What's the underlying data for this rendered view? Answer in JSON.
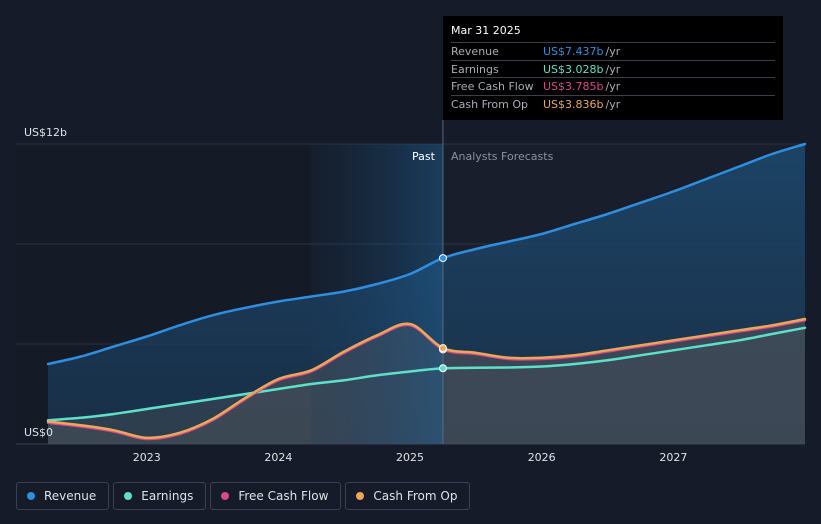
{
  "chart_data": {
    "type": "area",
    "y_top_label": "US$12b",
    "y_bottom_label": "US$0",
    "ylim": [
      0,
      12
    ],
    "x_ticks": [
      "2023",
      "2024",
      "2025",
      "2026",
      "2027"
    ],
    "past_label": "Past",
    "forecast_label": "Analysts Forecasts",
    "series": [
      {
        "name": "Revenue",
        "color": "#2e8fe0",
        "x": [
          2022.25,
          2022.5,
          2022.75,
          2023.0,
          2023.25,
          2023.5,
          2023.75,
          2024.0,
          2024.25,
          2024.5,
          2024.75,
          2025.0,
          2025.25,
          2025.5,
          2025.75,
          2026.0,
          2026.25,
          2026.5,
          2026.75,
          2027.0,
          2027.25,
          2027.5,
          2027.75,
          2028.0
        ],
        "values": [
          3.2,
          3.5,
          3.9,
          4.3,
          4.75,
          5.15,
          5.45,
          5.7,
          5.9,
          6.1,
          6.4,
          6.8,
          7.437,
          7.8,
          8.1,
          8.4,
          8.8,
          9.2,
          9.65,
          10.1,
          10.6,
          11.1,
          11.6,
          12.0
        ]
      },
      {
        "name": "Earnings",
        "color": "#5ee0c8",
        "x": [
          2022.25,
          2022.5,
          2022.75,
          2023.0,
          2023.25,
          2023.5,
          2023.75,
          2024.0,
          2024.25,
          2024.5,
          2024.75,
          2025.0,
          2025.25,
          2025.5,
          2025.75,
          2026.0,
          2026.25,
          2026.5,
          2026.75,
          2027.0,
          2027.25,
          2027.5,
          2027.75,
          2028.0
        ],
        "values": [
          0.95,
          1.05,
          1.2,
          1.4,
          1.6,
          1.8,
          2.0,
          2.2,
          2.4,
          2.55,
          2.75,
          2.9,
          3.028,
          3.05,
          3.06,
          3.1,
          3.2,
          3.35,
          3.55,
          3.75,
          3.95,
          4.15,
          4.4,
          4.65
        ]
      },
      {
        "name": "Free Cash Flow",
        "color": "#d6498c",
        "x": [
          2022.25,
          2022.5,
          2022.75,
          2023.0,
          2023.25,
          2023.5,
          2023.75,
          2024.0,
          2024.25,
          2024.5,
          2024.75,
          2025.0,
          2025.25,
          2025.5,
          2025.75,
          2026.0,
          2026.25,
          2026.5,
          2026.75,
          2027.0,
          2027.25,
          2027.5,
          2027.75,
          2028.0
        ],
        "values": [
          0.85,
          0.7,
          0.5,
          0.2,
          0.4,
          0.95,
          1.8,
          2.55,
          2.9,
          3.65,
          4.3,
          4.75,
          3.785,
          3.6,
          3.4,
          3.4,
          3.5,
          3.7,
          3.9,
          4.1,
          4.3,
          4.5,
          4.7,
          4.95
        ]
      },
      {
        "name": "Cash From Op",
        "color": "#eca859",
        "x": [
          2022.25,
          2022.5,
          2022.75,
          2023.0,
          2023.25,
          2023.5,
          2023.75,
          2024.0,
          2024.25,
          2024.5,
          2024.75,
          2025.0,
          2025.25,
          2025.5,
          2025.75,
          2026.0,
          2026.25,
          2026.5,
          2026.75,
          2027.0,
          2027.25,
          2027.5,
          2027.75,
          2028.0
        ],
        "values": [
          0.9,
          0.75,
          0.55,
          0.25,
          0.45,
          1.0,
          1.85,
          2.6,
          2.95,
          3.7,
          4.35,
          4.8,
          3.836,
          3.65,
          3.45,
          3.45,
          3.55,
          3.75,
          3.95,
          4.15,
          4.35,
          4.55,
          4.75,
          5.0
        ]
      }
    ],
    "past_end_x": 2025.25,
    "highlight_start_x": 2024.25,
    "legend": [
      "Revenue",
      "Earnings",
      "Free Cash Flow",
      "Cash From Op"
    ]
  },
  "tooltip": {
    "date": "Mar 31 2025",
    "rows": [
      {
        "label": "Revenue",
        "value": "US$7.437b",
        "unit": "/yr",
        "color": "#2e8fe0"
      },
      {
        "label": "Earnings",
        "value": "US$3.028b",
        "unit": "/yr",
        "color": "#5ee0c8"
      },
      {
        "label": "Free Cash Flow",
        "value": "US$3.785b",
        "unit": "/yr",
        "color": "#d6498c"
      },
      {
        "label": "Cash From Op",
        "value": "US$3.836b",
        "unit": "/yr",
        "color": "#eca859"
      }
    ]
  }
}
